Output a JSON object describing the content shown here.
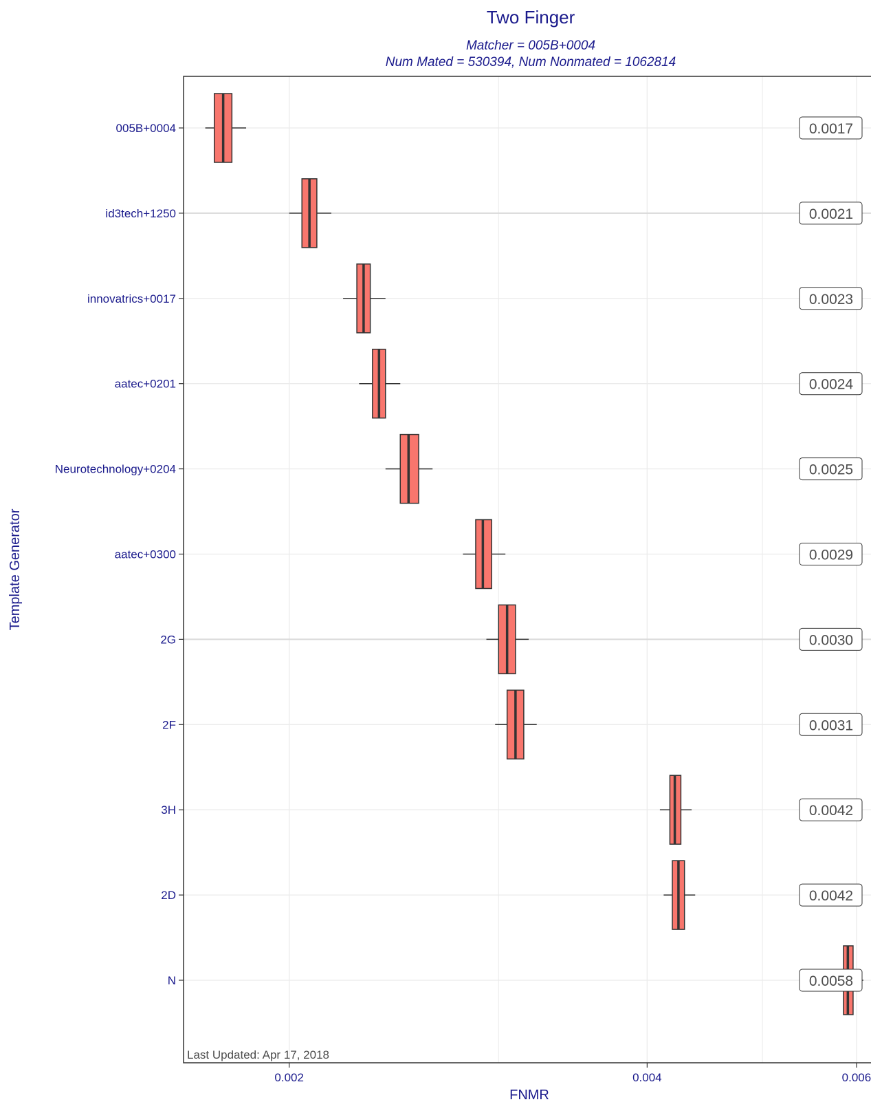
{
  "chart_data": {
    "type": "boxplot",
    "title": "Two Finger",
    "subtitle_lines": [
      "Matcher = 005B+0004",
      "Num Mated = 530394, Num Nonmated = 1062814"
    ],
    "xlabel": "FNMR",
    "ylabel": "Template Generator",
    "x_scale": "log",
    "xlim": [
      0.00163,
      0.00622
    ],
    "x_ticks": [
      0.002,
      0.004,
      0.006
    ],
    "x_tick_labels": [
      "0.002",
      "0.004",
      "0.006"
    ],
    "x_minor_gridlines": [
      0.003,
      0.005
    ],
    "grid": true,
    "footnote": "Last Updated: Apr 17, 2018",
    "colors": {
      "box_fill": "#f8766d",
      "box_stroke": "#333333",
      "text": "#1a1a8c",
      "label_text": "#4d4d4d"
    },
    "categories": [
      "005B+0004",
      "id3tech+1250",
      "innovatrics+0017",
      "aatec+0201",
      "Neurotechnology+0204",
      "aatec+0300",
      "2G",
      "2F",
      "3H",
      "2D",
      "N"
    ],
    "value_labels": [
      "0.0017",
      "0.0021",
      "0.0023",
      "0.0024",
      "0.0025",
      "0.0029",
      "0.0030",
      "0.0031",
      "0.0042",
      "0.0042",
      "0.0058"
    ],
    "highlighted_rows": [
      "id3tech+1250",
      "2G"
    ],
    "boxes": [
      {
        "name": "005B+0004",
        "whisker_low": 0.0017,
        "q1": 0.00173,
        "median": 0.00176,
        "q3": 0.00179,
        "whisker_high": 0.00184
      },
      {
        "name": "id3tech+1250",
        "whisker_low": 0.002,
        "q1": 0.00205,
        "median": 0.00208,
        "q3": 0.00211,
        "whisker_high": 0.00217
      },
      {
        "name": "innovatrics+0017",
        "whisker_low": 0.00222,
        "q1": 0.00228,
        "median": 0.00231,
        "q3": 0.00234,
        "whisker_high": 0.00241
      },
      {
        "name": "aatec+0201",
        "whisker_low": 0.00229,
        "q1": 0.00235,
        "median": 0.00238,
        "q3": 0.00241,
        "whisker_high": 0.00248
      },
      {
        "name": "Neurotechnology+0204",
        "whisker_low": 0.00241,
        "q1": 0.00248,
        "median": 0.00252,
        "q3": 0.00257,
        "whisker_high": 0.00264
      },
      {
        "name": "aatec+0300",
        "whisker_low": 0.0028,
        "q1": 0.00287,
        "median": 0.00291,
        "q3": 0.00296,
        "whisker_high": 0.00304
      },
      {
        "name": "2G",
        "whisker_low": 0.00293,
        "q1": 0.003,
        "median": 0.00305,
        "q3": 0.0031,
        "whisker_high": 0.00318
      },
      {
        "name": "2F",
        "whisker_low": 0.00298,
        "q1": 0.00305,
        "median": 0.0031,
        "q3": 0.00315,
        "whisker_high": 0.00323
      },
      {
        "name": "3H",
        "whisker_low": 0.0041,
        "q1": 0.00418,
        "median": 0.00422,
        "q3": 0.00427,
        "whisker_high": 0.00436
      },
      {
        "name": "2D",
        "whisker_low": 0.00413,
        "q1": 0.0042,
        "median": 0.00425,
        "q3": 0.0043,
        "whisker_high": 0.00439
      },
      {
        "name": "N",
        "whisker_low": 0.00575,
        "q1": 0.00585,
        "median": 0.0059,
        "q3": 0.00596,
        "whisker_high": 0.00608
      }
    ]
  }
}
